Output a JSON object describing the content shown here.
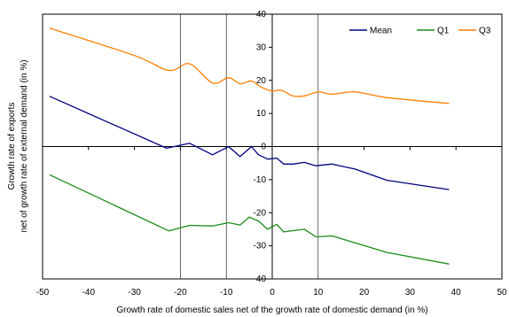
{
  "chart_data": {
    "type": "line",
    "title": "",
    "xlabel": "Growth rate of domestic sales net of the growth rate of domestic demand   (in %)",
    "ylabel_line1": "Growth rate of exports",
    "ylabel_line2": "net of growth rate of external demand    (in %)",
    "xlim": [
      -50,
      50
    ],
    "ylim": [
      -40,
      40
    ],
    "x_ticks": [
      -50,
      -40,
      -30,
      -20,
      -10,
      0,
      10,
      20,
      30,
      40,
      50
    ],
    "y_ticks": [
      -40,
      -30,
      -20,
      -10,
      0,
      10,
      20,
      30,
      40
    ],
    "grid": "vertical lines at x = -20, -10, 0, 10",
    "legend_position": "top-right",
    "series": [
      {
        "name": "Mean",
        "color": "#000080",
        "points": [
          [
            -48.5,
            15.2
          ],
          [
            -23,
            -0.5
          ],
          [
            -18,
            1.0
          ],
          [
            -13,
            -2.5
          ],
          [
            -9.5,
            0.0
          ],
          [
            -7,
            -3.0
          ],
          [
            -4.5,
            0.0
          ],
          [
            -3,
            -2.5
          ],
          [
            -1,
            -3.8
          ],
          [
            1,
            -3.5
          ],
          [
            2.5,
            -5.3
          ],
          [
            4.5,
            -5.3
          ],
          [
            7,
            -4.8
          ],
          [
            9.5,
            -5.8
          ],
          [
            13,
            -5.3
          ],
          [
            18,
            -6.8
          ],
          [
            25,
            -10.2
          ],
          [
            38.5,
            -13.0
          ]
        ]
      },
      {
        "name": "Q1",
        "color": "#1a8c1a",
        "points": [
          [
            -48.5,
            -8.5
          ],
          [
            -22.5,
            -25.5
          ],
          [
            -18,
            -23.8
          ],
          [
            -13,
            -24.0
          ],
          [
            -9.5,
            -23.0
          ],
          [
            -7,
            -23.7
          ],
          [
            -5,
            -21.3
          ],
          [
            -3,
            -22.5
          ],
          [
            -1,
            -25.0
          ],
          [
            1,
            -23.5
          ],
          [
            2.5,
            -25.8
          ],
          [
            7,
            -25.0
          ],
          [
            9.5,
            -27.3
          ],
          [
            13,
            -27.0
          ],
          [
            25,
            -32.0
          ],
          [
            38.5,
            -35.5
          ]
        ]
      },
      {
        "name": "Q3",
        "color": "#ff7f00",
        "points": [
          [
            -48.5,
            35.8
          ],
          [
            -30,
            27.5
          ],
          [
            -22.5,
            23.0
          ],
          [
            -18,
            25.0
          ],
          [
            -13,
            19.2
          ],
          [
            -9.5,
            20.8
          ],
          [
            -7,
            19.0
          ],
          [
            -4.5,
            19.8
          ],
          [
            -2.5,
            18.0
          ],
          [
            0,
            16.8
          ],
          [
            2,
            17.0
          ],
          [
            4.5,
            15.3
          ],
          [
            7,
            15.3
          ],
          [
            10,
            16.5
          ],
          [
            13,
            15.8
          ],
          [
            18,
            16.5
          ],
          [
            25,
            14.8
          ],
          [
            38.5,
            13.0
          ]
        ]
      }
    ]
  }
}
